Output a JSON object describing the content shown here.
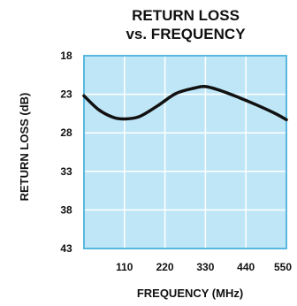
{
  "chart_data": {
    "type": "line",
    "title_lines": [
      "RETURN LOSS",
      "vs.  FREQUENCY"
    ],
    "xlabel": "FREQUENCY (MHz)",
    "ylabel": "RETURN LOSS (dB)",
    "x_ticks": [
      110,
      220,
      330,
      440,
      550
    ],
    "y_ticks": [
      18,
      23,
      28,
      33,
      38,
      43
    ],
    "xlim": [
      0,
      550
    ],
    "ylim": [
      18,
      43
    ],
    "y_inverted": true,
    "grid": true,
    "series": [
      {
        "x": [
          0,
          40,
          80,
          110,
          150,
          200,
          250,
          300,
          330,
          370,
          420,
          470,
          520,
          550
        ],
        "values": [
          23.2,
          25.0,
          26.0,
          26.2,
          25.9,
          24.5,
          22.9,
          22.2,
          22.0,
          22.5,
          23.4,
          24.4,
          25.5,
          26.3
        ]
      }
    ],
    "colors": {
      "plot_background": "#bfe6f7",
      "plot_border": "#5ab8e0",
      "grid": "#ffffff",
      "line": "#111111"
    }
  }
}
